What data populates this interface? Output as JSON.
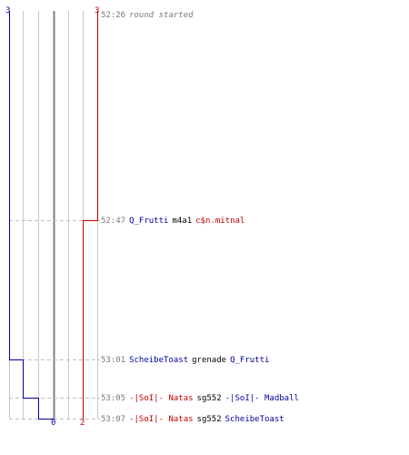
{
  "score": {
    "blue_start": "3",
    "red_start": "3",
    "blue_end": "0",
    "red_end": "2"
  },
  "colors": {
    "blue_team": "#0000a0",
    "red_team": "#c00000",
    "grid": "#c8c8c8",
    "center_line": "#808080",
    "time_text": "#7a7a7a"
  },
  "events": [
    {
      "time": "52:26",
      "message": "round started"
    },
    {
      "time": "52:47",
      "killer": "Q_Frutti",
      "killer_team": "blue",
      "weapon": "m4a1",
      "victim": "c$n.mitnal",
      "victim_team": "red"
    },
    {
      "time": "53:01",
      "killer": "ScheibeToast",
      "killer_team": "blue",
      "weapon": "grenade",
      "victim": "Q_Frutti",
      "victim_team": "blue"
    },
    {
      "time": "53:05",
      "killer": "-|SoI|- Natas",
      "killer_team": "red",
      "weapon": "sg552",
      "victim": "-|SoI|- Madball",
      "victim_team": "blue"
    },
    {
      "time": "53:07",
      "killer": "-|SoI|- Natas",
      "killer_team": "red",
      "weapon": "sg552",
      "victim": "ScheibeToast",
      "victim_team": "blue"
    }
  ]
}
